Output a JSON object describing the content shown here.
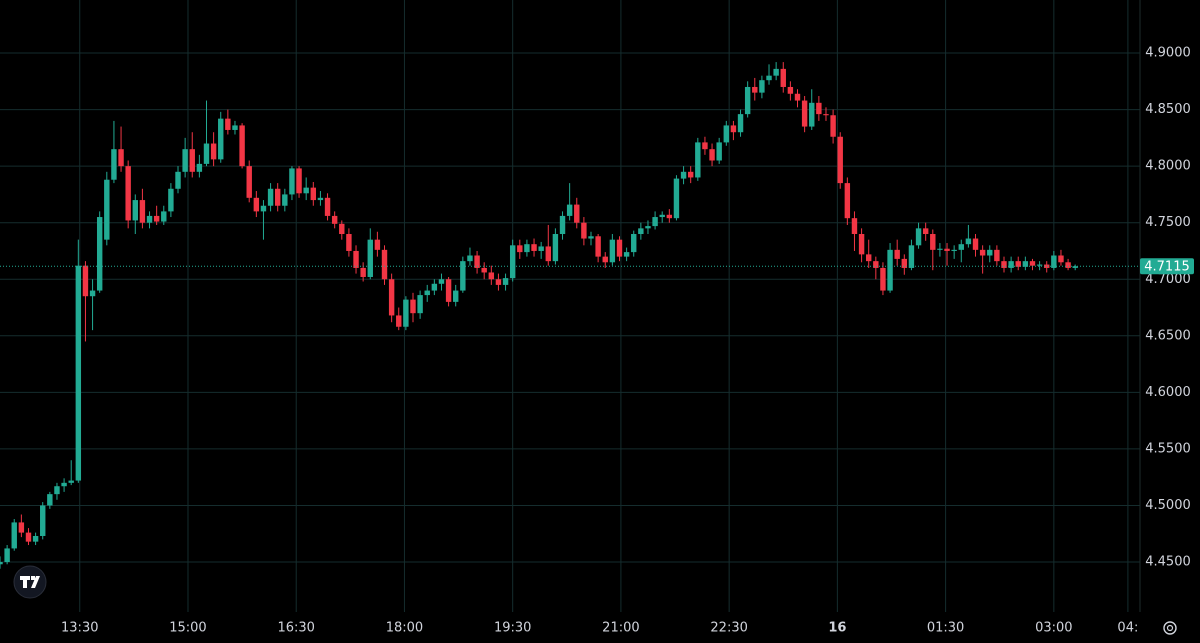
{
  "chart_data": {
    "type": "candlestick",
    "up_color": "#22ab94",
    "down_color": "#f23645",
    "grid": true,
    "xlim": [
      0,
      160.1
    ],
    "xticks": [
      {
        "value": 11.2,
        "label": "13:30"
      },
      {
        "value": 26.4,
        "label": "15:00"
      },
      {
        "value": 41.6,
        "label": "16:30"
      },
      {
        "value": 56.8,
        "label": "18:00"
      },
      {
        "value": 72,
        "label": "19:30"
      },
      {
        "value": 87.2,
        "label": "21:00"
      },
      {
        "value": 102.4,
        "label": "22:30"
      },
      {
        "value": 117.6,
        "label": "16",
        "bold": true
      },
      {
        "value": 132.8,
        "label": "01:30"
      },
      {
        "value": 148,
        "label": "03:00"
      },
      {
        "value": 158.4,
        "label": "04:"
      }
    ],
    "ylim": [
      4.4058,
      4.9469
    ],
    "yticks": [
      {
        "value": 4.45,
        "label": "4.4500"
      },
      {
        "value": 4.5,
        "label": "4.5000"
      },
      {
        "value": 4.55,
        "label": "4.5500"
      },
      {
        "value": 4.6,
        "label": "4.6000"
      },
      {
        "value": 4.65,
        "label": "4.6500"
      },
      {
        "value": 4.7,
        "label": "4.7000"
      },
      {
        "value": 4.75,
        "label": "4.7500"
      },
      {
        "value": 4.8,
        "label": "4.8000"
      },
      {
        "value": 4.85,
        "label": "4.8500"
      },
      {
        "value": 4.9,
        "label": "4.9000"
      }
    ],
    "last_price": 4.7115,
    "ohlc": [
      [
        4.448,
        4.455,
        4.444,
        4.45
      ],
      [
        4.45,
        4.465,
        4.448,
        4.462
      ],
      [
        4.462,
        4.488,
        4.46,
        4.485
      ],
      [
        4.485,
        4.492,
        4.472,
        4.476
      ],
      [
        4.476,
        4.48,
        4.465,
        4.468
      ],
      [
        4.468,
        4.476,
        4.465,
        4.473
      ],
      [
        4.473,
        4.503,
        4.47,
        4.5
      ],
      [
        4.5,
        4.512,
        4.497,
        4.51
      ],
      [
        4.51,
        4.52,
        4.505,
        4.517
      ],
      [
        4.517,
        4.524,
        4.512,
        4.52
      ],
      [
        4.52,
        4.54,
        4.518,
        4.522
      ],
      [
        4.522,
        4.735,
        4.52,
        4.712
      ],
      [
        4.712,
        4.716,
        4.645,
        4.685
      ],
      [
        4.685,
        4.7,
        4.655,
        4.69
      ],
      [
        4.69,
        4.76,
        4.688,
        4.755
      ],
      [
        4.735,
        4.795,
        4.73,
        4.788
      ],
      [
        4.788,
        4.84,
        4.785,
        4.815
      ],
      [
        4.815,
        4.835,
        4.795,
        4.8
      ],
      [
        4.8,
        4.805,
        4.745,
        4.752
      ],
      [
        4.752,
        4.775,
        4.74,
        4.77
      ],
      [
        4.77,
        4.78,
        4.745,
        4.75
      ],
      [
        4.75,
        4.76,
        4.745,
        4.756
      ],
      [
        4.756,
        4.765,
        4.748,
        4.751
      ],
      [
        4.751,
        4.765,
        4.748,
        4.76
      ],
      [
        4.76,
        4.785,
        4.755,
        4.78
      ],
      [
        4.78,
        4.8,
        4.776,
        4.795
      ],
      [
        4.795,
        4.825,
        4.79,
        4.815
      ],
      [
        4.815,
        4.83,
        4.79,
        4.795
      ],
      [
        4.795,
        4.81,
        4.79,
        4.802
      ],
      [
        4.802,
        4.858,
        4.8,
        4.82
      ],
      [
        4.82,
        4.83,
        4.8,
        4.806
      ],
      [
        4.806,
        4.848,
        4.803,
        4.842
      ],
      [
        4.842,
        4.85,
        4.828,
        4.832
      ],
      [
        4.832,
        4.84,
        4.828,
        4.836
      ],
      [
        4.836,
        4.838,
        4.798,
        4.8
      ],
      [
        4.8,
        4.805,
        4.768,
        4.772
      ],
      [
        4.772,
        4.778,
        4.755,
        4.76
      ],
      [
        4.76,
        4.77,
        4.735,
        4.765
      ],
      [
        4.765,
        4.785,
        4.76,
        4.78
      ],
      [
        4.78,
        4.785,
        4.76,
        4.765
      ],
      [
        4.765,
        4.78,
        4.76,
        4.775
      ],
      [
        4.775,
        4.8,
        4.77,
        4.798
      ],
      [
        4.798,
        4.8,
        4.772,
        4.776
      ],
      [
        4.776,
        4.79,
        4.77,
        4.781
      ],
      [
        4.781,
        4.786,
        4.765,
        4.77
      ],
      [
        4.77,
        4.778,
        4.765,
        4.772
      ],
      [
        4.772,
        4.776,
        4.752,
        4.756
      ],
      [
        4.756,
        4.76,
        4.745,
        4.749
      ],
      [
        4.749,
        4.752,
        4.735,
        4.74
      ],
      [
        4.74,
        4.745,
        4.72,
        4.725
      ],
      [
        4.725,
        4.73,
        4.705,
        4.71
      ],
      [
        4.71,
        4.715,
        4.698,
        4.702
      ],
      [
        4.702,
        4.745,
        4.7,
        4.735
      ],
      [
        4.735,
        4.742,
        4.72,
        4.726
      ],
      [
        4.726,
        4.73,
        4.695,
        4.7
      ],
      [
        4.7,
        4.705,
        4.662,
        4.668
      ],
      [
        4.668,
        4.675,
        4.655,
        4.658
      ],
      [
        4.658,
        4.685,
        4.655,
        4.682
      ],
      [
        4.682,
        4.688,
        4.662,
        4.67
      ],
      [
        4.67,
        4.69,
        4.665,
        4.686
      ],
      [
        4.686,
        4.695,
        4.68,
        4.69
      ],
      [
        4.69,
        4.7,
        4.686,
        4.696
      ],
      [
        4.696,
        4.705,
        4.69,
        4.7
      ],
      [
        4.7,
        4.702,
        4.676,
        4.68
      ],
      [
        4.68,
        4.695,
        4.676,
        4.69
      ],
      [
        4.69,
        4.72,
        4.688,
        4.716
      ],
      [
        4.716,
        4.728,
        4.712,
        4.721
      ],
      [
        4.721,
        4.725,
        4.705,
        4.71
      ],
      [
        4.71,
        4.715,
        4.7,
        4.706
      ],
      [
        4.706,
        4.712,
        4.695,
        4.7
      ],
      [
        4.7,
        4.705,
        4.69,
        4.695
      ],
      [
        4.695,
        4.705,
        4.69,
        4.701
      ],
      [
        4.701,
        4.735,
        4.698,
        4.73
      ],
      [
        4.73,
        4.735,
        4.718,
        4.724
      ],
      [
        4.724,
        4.735,
        4.72,
        4.731
      ],
      [
        4.731,
        4.736,
        4.72,
        4.725
      ],
      [
        4.725,
        4.733,
        4.718,
        4.729
      ],
      [
        4.729,
        4.748,
        4.712,
        4.716
      ],
      [
        4.716,
        4.745,
        4.713,
        4.74
      ],
      [
        4.74,
        4.76,
        4.735,
        4.756
      ],
      [
        4.756,
        4.785,
        4.752,
        4.766
      ],
      [
        4.766,
        4.772,
        4.745,
        4.75
      ],
      [
        4.75,
        4.755,
        4.73,
        4.736
      ],
      [
        4.736,
        4.742,
        4.73,
        4.738
      ],
      [
        4.738,
        4.74,
        4.715,
        4.72
      ],
      [
        4.72,
        4.724,
        4.71,
        4.715
      ],
      [
        4.715,
        4.74,
        4.712,
        4.735
      ],
      [
        4.735,
        4.738,
        4.716,
        4.72
      ],
      [
        4.72,
        4.728,
        4.716,
        4.724
      ],
      [
        4.724,
        4.743,
        4.72,
        4.74
      ],
      [
        4.74,
        4.75,
        4.735,
        4.745
      ],
      [
        4.745,
        4.752,
        4.74,
        4.747
      ],
      [
        4.747,
        4.76,
        4.744,
        4.755
      ],
      [
        4.755,
        4.76,
        4.75,
        4.757
      ],
      [
        4.757,
        4.762,
        4.75,
        4.754
      ],
      [
        4.754,
        4.792,
        4.752,
        4.789
      ],
      [
        4.789,
        4.8,
        4.784,
        4.795
      ],
      [
        4.795,
        4.8,
        4.785,
        4.79
      ],
      [
        4.79,
        4.825,
        4.787,
        4.821
      ],
      [
        4.821,
        4.826,
        4.81,
        4.815
      ],
      [
        4.815,
        4.82,
        4.8,
        4.805
      ],
      [
        4.805,
        4.825,
        4.802,
        4.821
      ],
      [
        4.821,
        4.84,
        4.818,
        4.836
      ],
      [
        4.836,
        4.84,
        4.823,
        4.83
      ],
      [
        4.83,
        4.85,
        4.826,
        4.846
      ],
      [
        4.846,
        4.875,
        4.843,
        4.87
      ],
      [
        4.87,
        4.878,
        4.858,
        4.865
      ],
      [
        4.865,
        4.88,
        4.86,
        4.876
      ],
      [
        4.876,
        4.89,
        4.872,
        4.88
      ],
      [
        4.88,
        4.892,
        4.876,
        4.886
      ],
      [
        4.886,
        4.892,
        4.865,
        4.87
      ],
      [
        4.87,
        4.875,
        4.858,
        4.864
      ],
      [
        4.864,
        4.868,
        4.852,
        4.858
      ],
      [
        4.858,
        4.862,
        4.83,
        4.835
      ],
      [
        4.835,
        4.868,
        4.832,
        4.856
      ],
      [
        4.856,
        4.862,
        4.84,
        4.846
      ],
      [
        4.846,
        4.852,
        4.84,
        4.845
      ],
      [
        4.845,
        4.85,
        4.82,
        4.826
      ],
      [
        4.826,
        4.83,
        4.78,
        4.785
      ],
      [
        4.785,
        4.79,
        4.748,
        4.754
      ],
      [
        4.754,
        4.76,
        4.725,
        4.74
      ],
      [
        4.74,
        4.745,
        4.715,
        4.722
      ],
      [
        4.722,
        4.735,
        4.71,
        4.716
      ],
      [
        4.716,
        4.72,
        4.7,
        4.71
      ],
      [
        4.71,
        4.715,
        4.686,
        4.69
      ],
      [
        4.69,
        4.732,
        4.688,
        4.726
      ],
      [
        4.726,
        4.735,
        4.712,
        4.718
      ],
      [
        4.718,
        4.722,
        4.704,
        4.71
      ],
      [
        4.71,
        4.735,
        4.708,
        4.73
      ],
      [
        4.73,
        4.75,
        4.727,
        4.745
      ],
      [
        4.745,
        4.75,
        4.734,
        4.74
      ],
      [
        4.74,
        4.744,
        4.708,
        4.726
      ],
      [
        4.726,
        4.732,
        4.72,
        4.727
      ],
      [
        4.727,
        4.732,
        4.712,
        4.725
      ],
      [
        4.725,
        4.73,
        4.718,
        4.726
      ],
      [
        4.726,
        4.735,
        4.715,
        4.731
      ],
      [
        4.731,
        4.748,
        4.728,
        4.736
      ],
      [
        4.736,
        4.74,
        4.72,
        4.726
      ],
      [
        4.726,
        4.73,
        4.705,
        4.721
      ],
      [
        4.721,
        4.73,
        4.715,
        4.726
      ],
      [
        4.726,
        4.73,
        4.712,
        4.716
      ],
      [
        4.716,
        4.72,
        4.706,
        4.71
      ],
      [
        4.71,
        4.72,
        4.706,
        4.716
      ],
      [
        4.716,
        4.72,
        4.708,
        4.711
      ],
      [
        4.711,
        4.72,
        4.708,
        4.716
      ],
      [
        4.716,
        4.718,
        4.708,
        4.712
      ],
      [
        4.712,
        4.716,
        4.708,
        4.713
      ],
      [
        4.713,
        4.716,
        4.706,
        4.71
      ],
      [
        4.71,
        4.725,
        4.708,
        4.721
      ],
      [
        4.721,
        4.726,
        4.712,
        4.715
      ],
      [
        4.715,
        4.718,
        4.708,
        4.71
      ],
      [
        4.71,
        4.713,
        4.708,
        4.7115
      ]
    ]
  }
}
